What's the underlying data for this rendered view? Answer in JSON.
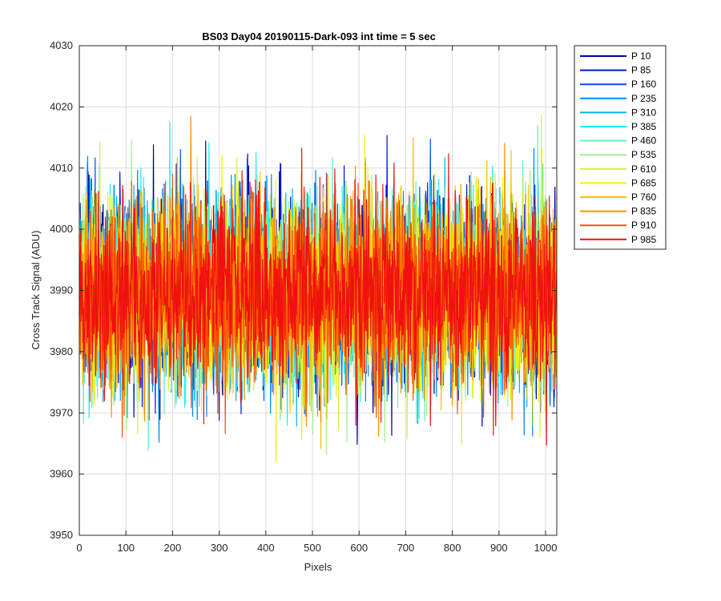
{
  "chart_data": {
    "type": "line",
    "title": "BS03 Day04 20190115-Dark-093 int time = 5 sec",
    "xlabel": "Pixels",
    "ylabel": "Cross Track Signal (ADU)",
    "xlim": [
      0,
      1024
    ],
    "ylim": [
      3950,
      4030
    ],
    "x_ticks": [
      "0",
      "100",
      "200",
      "300",
      "400",
      "500",
      "600",
      "700",
      "800",
      "900",
      "1000"
    ],
    "y_ticks": [
      "3950",
      "3960",
      "3970",
      "3980",
      "3990",
      "4000",
      "4010",
      "4020",
      "4030"
    ],
    "grid": true,
    "legend_position": "outside-top-right",
    "series": [
      {
        "name": "P 10",
        "color": "#0000a8"
      },
      {
        "name": "P 85",
        "color": "#0017d8"
      },
      {
        "name": "P 160",
        "color": "#0050f0"
      },
      {
        "name": "P 235",
        "color": "#0088f0"
      },
      {
        "name": "P 310",
        "color": "#00b4f0"
      },
      {
        "name": "P 385",
        "color": "#18eef0"
      },
      {
        "name": "P 460",
        "color": "#60f0c8"
      },
      {
        "name": "P 535",
        "color": "#a0f08c"
      },
      {
        "name": "P 610",
        "color": "#d8f040"
      },
      {
        "name": "P 685",
        "color": "#f8f000"
      },
      {
        "name": "P 760",
        "color": "#f8c000"
      },
      {
        "name": "P 835",
        "color": "#f89000"
      },
      {
        "name": "P 910",
        "color": "#f85000"
      },
      {
        "name": "P 985",
        "color": "#f01010"
      }
    ],
    "series_stats": {
      "mean": 3989.5,
      "std": 7.5,
      "min": 3958,
      "max": 4025,
      "points_per_series": 1024
    }
  }
}
